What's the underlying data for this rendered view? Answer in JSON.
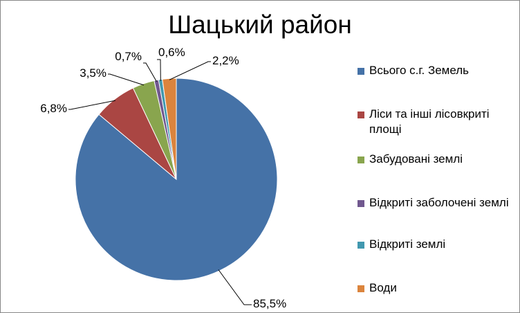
{
  "chart_data": {
    "type": "pie",
    "title": "Шацький район",
    "categories": [
      "Всього с.г. Земель",
      "Ліси та інші лісовкриті площі",
      "Забудовані землі",
      "Відкриті заболочені землі",
      "Відкриті землі",
      "Води"
    ],
    "values": [
      85.5,
      6.8,
      3.5,
      0.7,
      0.6,
      2.2
    ],
    "data_labels": [
      "85,5%",
      "6,8%",
      "3,5%",
      "0,7%",
      "0,6%",
      "2,2%"
    ],
    "colors": [
      "#4572A7",
      "#AA4643",
      "#89A54E",
      "#71588F",
      "#4198AF",
      "#DB843D"
    ],
    "legend_position": "right"
  }
}
